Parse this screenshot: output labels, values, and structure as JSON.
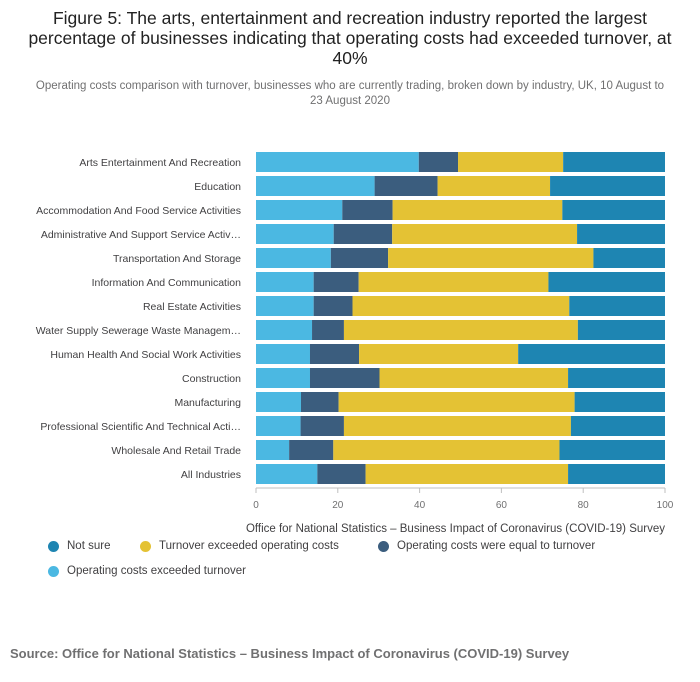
{
  "title": "Figure 5: The arts, entertainment and recreation industry reported the largest percentage of businesses indicating that operating costs had exceeded turnover, at 40%",
  "subtitle": "Operating costs comparison with turnover, businesses who are currently trading, broken down by industry, UK, 10 August to 23 August 2020",
  "source": "Source: Office for National Statistics – Business Impact of Coronavirus (COVID-19) Survey",
  "chart_data": {
    "type": "bar",
    "orientation": "horizontal",
    "stacked": true,
    "categories": [
      "Arts Entertainment And Recreation",
      "Education",
      "Accommodation And Food Service Activities",
      "Administrative And Support Service Activ…",
      "Transportation And Storage",
      "Information And Communication",
      "Real Estate Activities",
      "Water Supply Sewerage Waste Managem…",
      "Human Health And Social Work Activities",
      "Construction",
      "Manufacturing",
      "Professional Scientific And Technical Acti…",
      "Wholesale And Retail Trade",
      "All Industries"
    ],
    "series": [
      {
        "name": "Operating costs exceeded turnover",
        "color": "#4bb8e2",
        "values": [
          39.8,
          29,
          21.1,
          19,
          18.3,
          14.1,
          14.1,
          13.7,
          13.2,
          13.2,
          11,
          10.9,
          8.1,
          15
        ]
      },
      {
        "name": "Operating costs were equal to turnover",
        "color": "#3b5d7e",
        "values": [
          9.6,
          15.4,
          12.3,
          14.3,
          14,
          11,
          9.5,
          7.8,
          12,
          17,
          9.2,
          10.6,
          10.8,
          11.8
        ]
      },
      {
        "name": "Turnover exceeded operating costs",
        "color": "#e4c234",
        "values": [
          25.7,
          27.5,
          41.5,
          45.2,
          50.2,
          46.4,
          53,
          57.2,
          38.9,
          46.1,
          57.7,
          55.5,
          55.3,
          49.5
        ]
      },
      {
        "name": "Not sure",
        "color": "#1e85b2",
        "values": [
          24.9,
          28.1,
          25.1,
          21.5,
          17.5,
          28.5,
          23.4,
          21.3,
          35.9,
          23.7,
          22.1,
          23,
          25.8,
          23.7
        ]
      }
    ],
    "xlabel": "Office for National Statistics – Business Impact of Coronavirus (COVID-19) Survey",
    "ylabel": "",
    "xlim": [
      0,
      100
    ],
    "xticks": [
      0,
      20,
      40,
      60,
      80,
      100
    ],
    "grid": false,
    "legend": {
      "placement": "bottom-left",
      "order": [
        "Not sure",
        "Turnover exceeded operating costs",
        "Operating costs were equal to turnover",
        "Operating costs exceeded turnover"
      ]
    }
  }
}
